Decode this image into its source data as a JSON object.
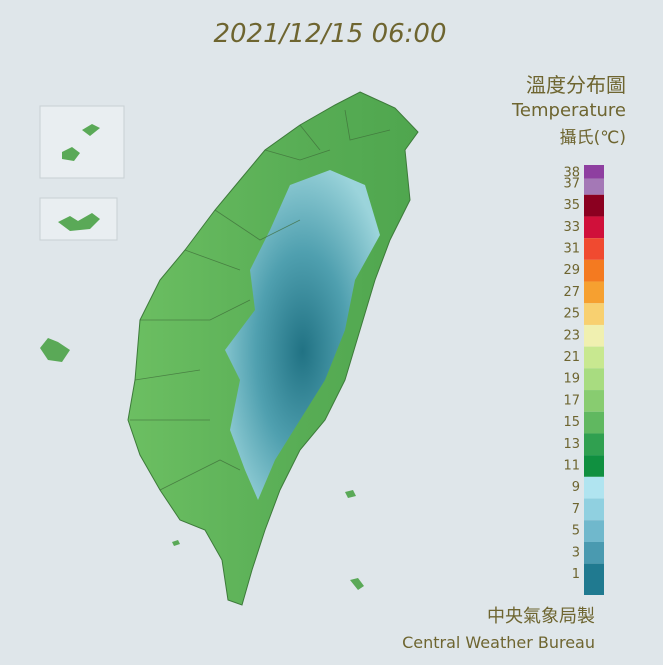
{
  "header": {
    "timestamp": "2021/12/15 06:00",
    "title": "溫度分布圖",
    "subtitle": "Temperature",
    "unit": "攝氏(℃)"
  },
  "legend": {
    "labels": [
      38,
      37,
      35,
      33,
      31,
      29,
      27,
      25,
      23,
      21,
      19,
      17,
      15,
      13,
      11,
      9,
      7,
      5,
      3,
      1
    ],
    "colors": [
      "#8e3fa0",
      "#a478b6",
      "#8b0020",
      "#d0103a",
      "#f04a30",
      "#f47a20",
      "#f6a030",
      "#f8d070",
      "#f0f0b0",
      "#c8e890",
      "#a8dc80",
      "#88cc70",
      "#60b860",
      "#30a050",
      "#109040",
      "#b0e4f0",
      "#90d0e0",
      "#70b8cc",
      "#4a9ab0",
      "#207a90"
    ]
  },
  "footer": {
    "agency_zh": "中央氣象局製",
    "agency_en": "Central Weather Bureau"
  }
}
